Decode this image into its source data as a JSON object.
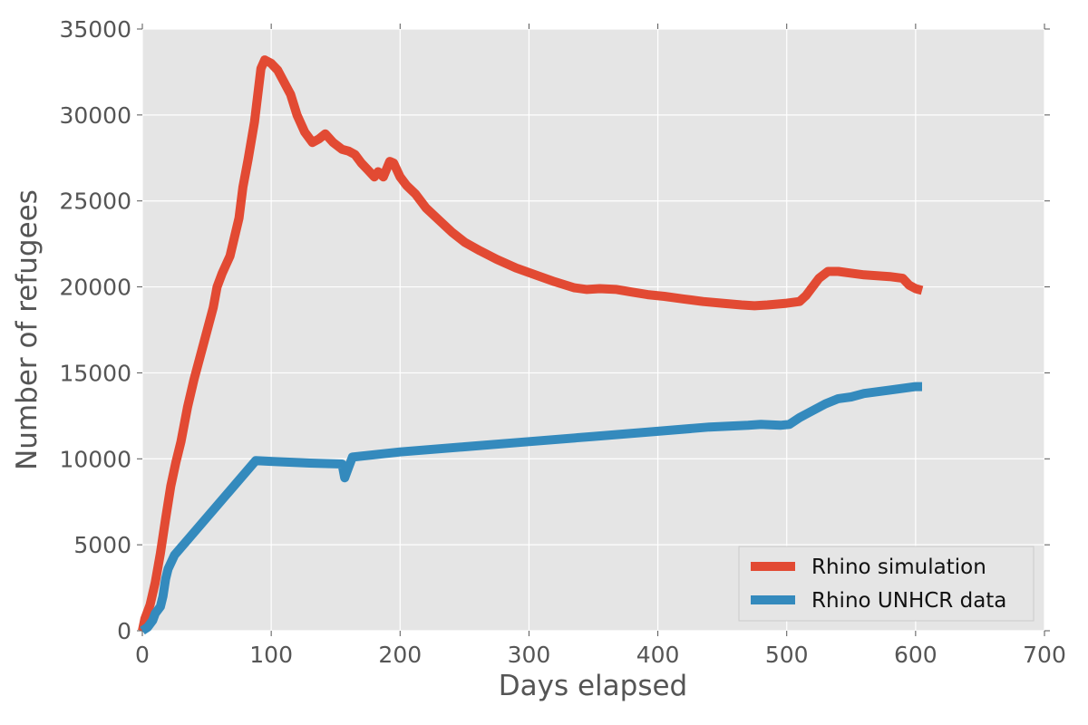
{
  "chart_data": {
    "type": "line",
    "title": "",
    "xlabel": "Days elapsed",
    "ylabel": "Number of refugees",
    "xlim": [
      0,
      700
    ],
    "ylim": [
      0,
      35000
    ],
    "x_ticks": [
      0,
      100,
      200,
      300,
      400,
      500,
      600,
      700
    ],
    "y_ticks": [
      0,
      5000,
      10000,
      15000,
      20000,
      25000,
      30000,
      35000
    ],
    "grid": true,
    "legend_position": "lower-right",
    "series": [
      {
        "name": "Rhino simulation",
        "color": "#e24a33",
        "points": [
          [
            0,
            0
          ],
          [
            2,
            700
          ],
          [
            6,
            1500
          ],
          [
            10,
            2800
          ],
          [
            14,
            4500
          ],
          [
            18,
            6500
          ],
          [
            22,
            8400
          ],
          [
            26,
            9800
          ],
          [
            30,
            11000
          ],
          [
            35,
            13000
          ],
          [
            40,
            14600
          ],
          [
            45,
            16000
          ],
          [
            50,
            17400
          ],
          [
            55,
            18800
          ],
          [
            58,
            20000
          ],
          [
            62,
            20800
          ],
          [
            68,
            21800
          ],
          [
            75,
            24000
          ],
          [
            78,
            25800
          ],
          [
            82,
            27400
          ],
          [
            87,
            29600
          ],
          [
            92,
            32700
          ],
          [
            95,
            33200
          ],
          [
            100,
            33000
          ],
          [
            105,
            32600
          ],
          [
            110,
            31900
          ],
          [
            115,
            31200
          ],
          [
            120,
            30000
          ],
          [
            126,
            29000
          ],
          [
            132,
            28400
          ],
          [
            137,
            28600
          ],
          [
            142,
            28900
          ],
          [
            148,
            28400
          ],
          [
            155,
            28000
          ],
          [
            160,
            27900
          ],
          [
            165,
            27700
          ],
          [
            170,
            27200
          ],
          [
            175,
            26800
          ],
          [
            180,
            26400
          ],
          [
            183,
            26700
          ],
          [
            187,
            26400
          ],
          [
            192,
            27300
          ],
          [
            195,
            27200
          ],
          [
            200,
            26400
          ],
          [
            205,
            25900
          ],
          [
            212,
            25400
          ],
          [
            220,
            24600
          ],
          [
            230,
            23900
          ],
          [
            240,
            23200
          ],
          [
            250,
            22600
          ],
          [
            262,
            22100
          ],
          [
            275,
            21600
          ],
          [
            290,
            21100
          ],
          [
            305,
            20700
          ],
          [
            320,
            20300
          ],
          [
            335,
            19950
          ],
          [
            345,
            19850
          ],
          [
            355,
            19900
          ],
          [
            368,
            19850
          ],
          [
            380,
            19700
          ],
          [
            392,
            19550
          ],
          [
            405,
            19450
          ],
          [
            420,
            19300
          ],
          [
            435,
            19150
          ],
          [
            450,
            19050
          ],
          [
            465,
            18950
          ],
          [
            475,
            18900
          ],
          [
            485,
            18950
          ],
          [
            500,
            19050
          ],
          [
            510,
            19150
          ],
          [
            515,
            19500
          ],
          [
            525,
            20500
          ],
          [
            532,
            20900
          ],
          [
            540,
            20900
          ],
          [
            550,
            20800
          ],
          [
            560,
            20700
          ],
          [
            570,
            20650
          ],
          [
            580,
            20600
          ],
          [
            590,
            20500
          ],
          [
            595,
            20100
          ],
          [
            600,
            19900
          ],
          [
            605,
            19800
          ]
        ]
      },
      {
        "name": "Rhino UNHCR data",
        "color": "#348abd",
        "points": [
          [
            0,
            0
          ],
          [
            4,
            200
          ],
          [
            8,
            600
          ],
          [
            10,
            1000
          ],
          [
            14,
            1400
          ],
          [
            16,
            2000
          ],
          [
            18,
            3000
          ],
          [
            20,
            3600
          ],
          [
            25,
            4400
          ],
          [
            88,
            9900
          ],
          [
            100,
            9850
          ],
          [
            130,
            9750
          ],
          [
            155,
            9700
          ],
          [
            157,
            8900
          ],
          [
            160,
            9500
          ],
          [
            163,
            10100
          ],
          [
            200,
            10400
          ],
          [
            250,
            10700
          ],
          [
            300,
            11000
          ],
          [
            350,
            11300
          ],
          [
            400,
            11600
          ],
          [
            440,
            11850
          ],
          [
            470,
            11950
          ],
          [
            480,
            12000
          ],
          [
            495,
            11950
          ],
          [
            502,
            12000
          ],
          [
            510,
            12400
          ],
          [
            530,
            13200
          ],
          [
            540,
            13500
          ],
          [
            550,
            13600
          ],
          [
            560,
            13800
          ],
          [
            580,
            14000
          ],
          [
            600,
            14200
          ],
          [
            605,
            14200
          ]
        ]
      }
    ]
  }
}
